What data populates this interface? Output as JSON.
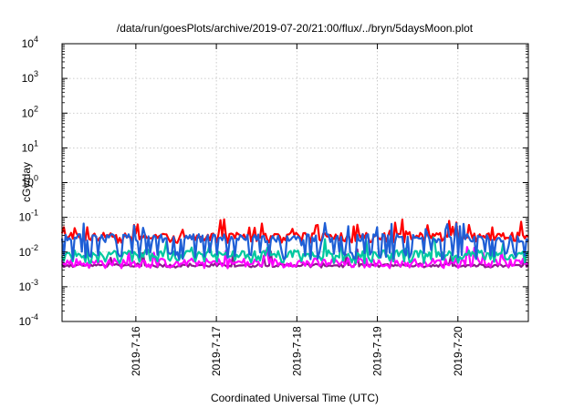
{
  "chart_data": {
    "type": "line",
    "title": "/data/run/goesPlots/archive/2019-07-20/21:00/flux/../bryn/5daysMoon.plot",
    "xlabel": "Coordinated Universal Time (UTC)",
    "ylabel": "cGy/day",
    "yscale": "log",
    "ylim": [
      0.0001,
      10000
    ],
    "xlim": [
      "2019-07-15 02:00",
      "2019-07-20 21:00"
    ],
    "grid": true,
    "x_ticks": [
      "2019-7-16",
      "2019-7-17",
      "2019-7-18",
      "2019-7-19",
      "2019-7-20"
    ],
    "y_ticks": [
      {
        "base": "10",
        "exp": "-4"
      },
      {
        "base": "10",
        "exp": "-3"
      },
      {
        "base": "10",
        "exp": "-2"
      },
      {
        "base": "10",
        "exp": "-1"
      },
      {
        "base": "10",
        "exp": "0"
      },
      {
        "base": "10",
        "exp": "1"
      },
      {
        "base": "10",
        "exp": "2"
      },
      {
        "base": "10",
        "exp": "3"
      },
      {
        "base": "10",
        "exp": "4"
      }
    ],
    "series": [
      {
        "color": "#ff0000",
        "baseline": 0.03,
        "low_dip": 0.022,
        "noise": 0.08,
        "spikes": 0.35
      },
      {
        "color": "#1f5fd6",
        "baseline": 0.025,
        "low_dip": 0.008,
        "noise": 0.12,
        "spikes": 0.3
      },
      {
        "color": "#00c8a0",
        "baseline": 0.009,
        "low_dip": 0.006,
        "noise": 0.1,
        "spikes": 0.25
      },
      {
        "color": "#ff00ff",
        "baseline": 0.005,
        "low_dip": 0.0045,
        "noise": 0.12,
        "spikes": 0.15
      },
      {
        "color": "#8b1a8b",
        "baseline": 0.0042,
        "low_dip": 0.004,
        "noise": 0.05,
        "spikes": 0.1
      }
    ]
  }
}
